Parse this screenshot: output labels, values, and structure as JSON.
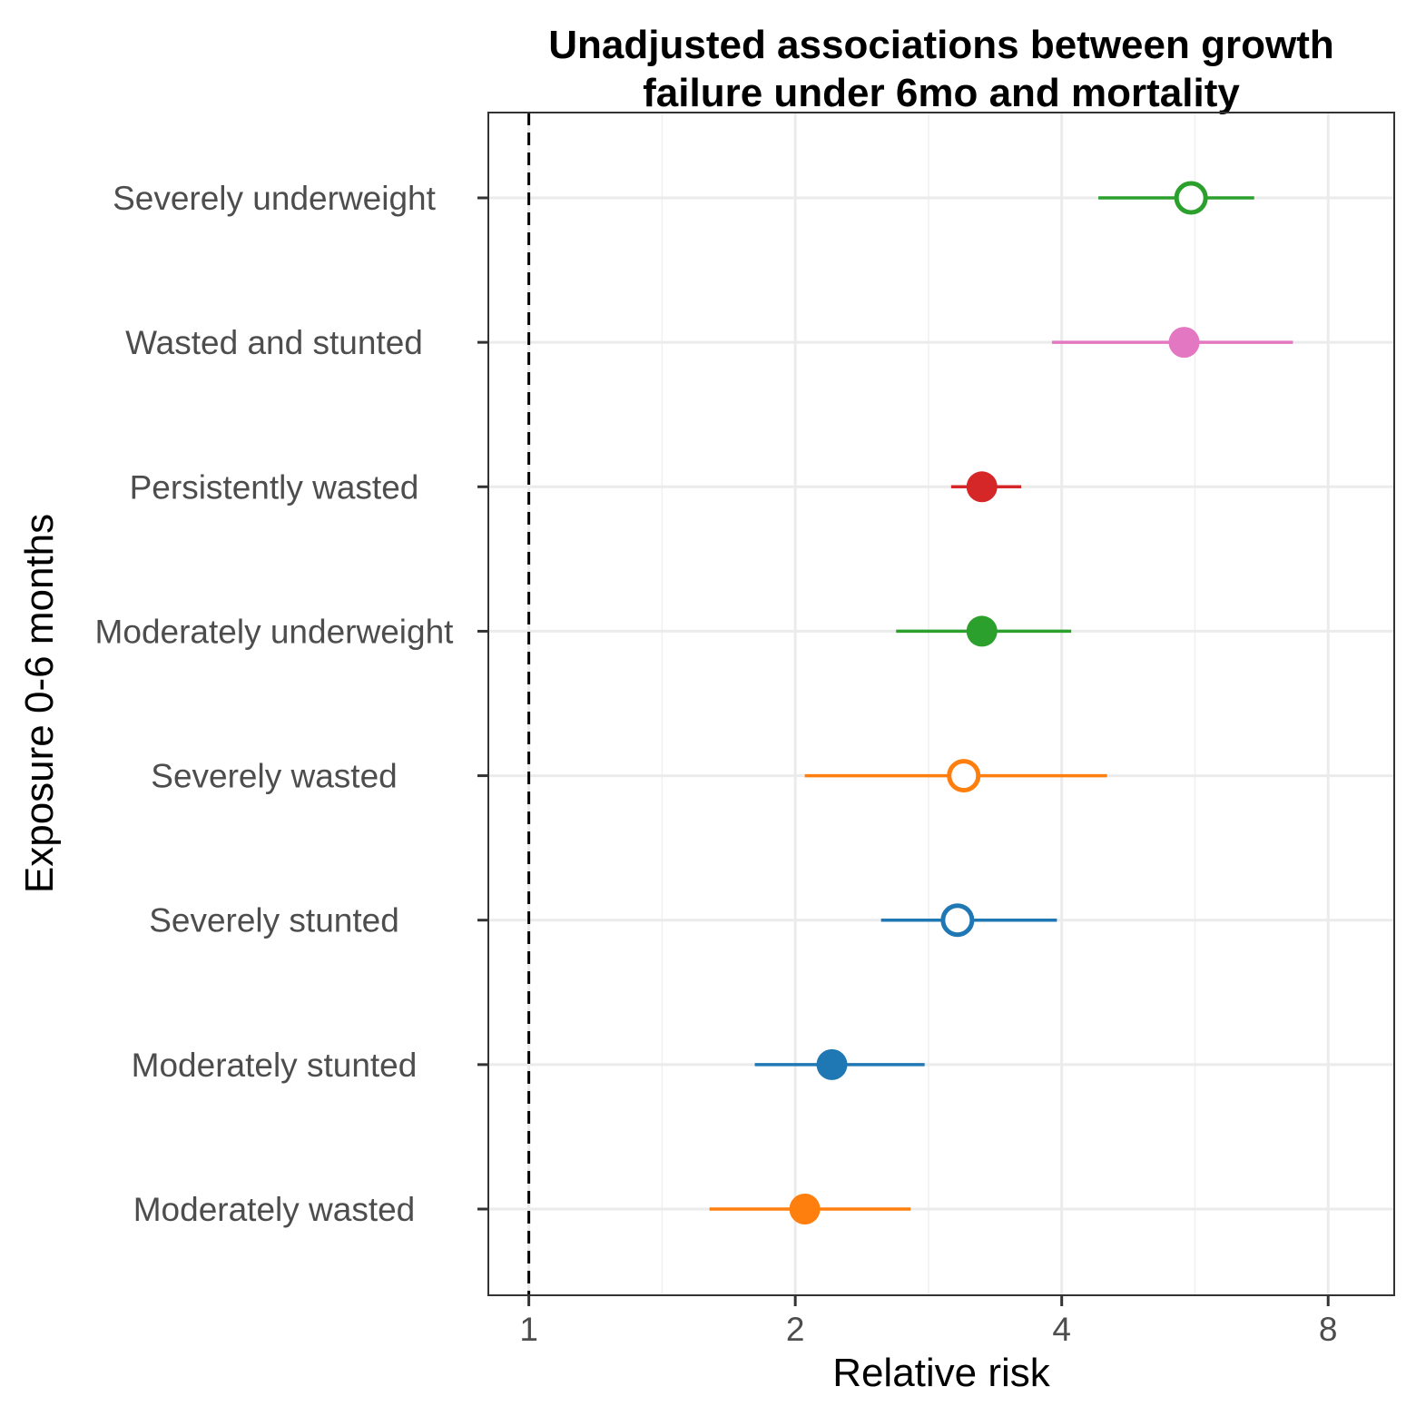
{
  "chart_data": {
    "type": "scatter",
    "title_lines": [
      "Unadjusted associations between growth",
      "failure under 6mo and mortality"
    ],
    "xlabel": "Relative risk",
    "ylabel": "Exposure 0-6 months",
    "x_scale": "log2",
    "xlim": [
      0.9,
      9.5
    ],
    "x_ticks": [
      1,
      2,
      4,
      8
    ],
    "x_tick_labels": [
      "1",
      "2",
      "4",
      "8"
    ],
    "reference_line": 1,
    "grid": true,
    "categories": [
      "Severely underweight",
      "Wasted and stunted",
      "Persistently wasted",
      "Moderately underweight",
      "Severely wasted",
      "Severely stunted",
      "Moderately stunted",
      "Moderately wasted"
    ],
    "points": [
      {
        "label": "Severely underweight",
        "estimate": 5.6,
        "lower": 4.4,
        "upper": 6.6,
        "color": "#2ca02c",
        "filled": false
      },
      {
        "label": "Wasted and stunted",
        "estimate": 5.5,
        "lower": 3.9,
        "upper": 7.3,
        "color": "#e377c2",
        "filled": true
      },
      {
        "label": "Persistently wasted",
        "estimate": 3.25,
        "lower": 3.0,
        "upper": 3.6,
        "color": "#d62728",
        "filled": true
      },
      {
        "label": "Moderately underweight",
        "estimate": 3.25,
        "lower": 2.6,
        "upper": 4.1,
        "color": "#2ca02c",
        "filled": true
      },
      {
        "label": "Severely wasted",
        "estimate": 3.1,
        "lower": 2.05,
        "upper": 4.5,
        "color": "#ff7f0e",
        "filled": false
      },
      {
        "label": "Severely stunted",
        "estimate": 3.05,
        "lower": 2.5,
        "upper": 3.95,
        "color": "#1f77b4",
        "filled": false
      },
      {
        "label": "Moderately stunted",
        "estimate": 2.2,
        "lower": 1.8,
        "upper": 2.8,
        "color": "#1f77b4",
        "filled": true
      },
      {
        "label": "Moderately wasted",
        "estimate": 2.05,
        "lower": 1.6,
        "upper": 2.7,
        "color": "#ff7f0e",
        "filled": true
      }
    ]
  }
}
